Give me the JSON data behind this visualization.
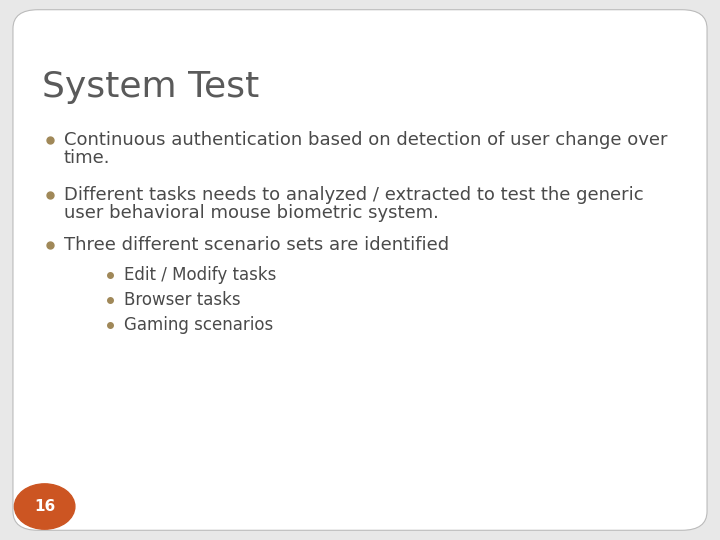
{
  "title": "System Test",
  "title_color": "#5a5a5a",
  "title_fontsize": 26,
  "background_color": "#e8e8e8",
  "slide_bg": "#ffffff",
  "bullet_color": "#a08858",
  "text_color": "#4a4a4a",
  "bullet1_line1": "Continuous authentication based on detection of user change over",
  "bullet1_line2": "time.",
  "bullet2_line1": "Different tasks needs to analyzed / extracted to test the generic",
  "bullet2_line2": "user behavioral mouse biometric system.",
  "bullet3": "Three different scenario sets are identified",
  "sub_bullet1": "Edit / Modify tasks",
  "sub_bullet2": "Browser tasks",
  "sub_bullet3": "Gaming scenarios",
  "page_number": "16",
  "page_circle_color": "#cc5522",
  "page_text_color": "#ffffff",
  "main_fontsize": 13,
  "sub_fontsize": 12
}
